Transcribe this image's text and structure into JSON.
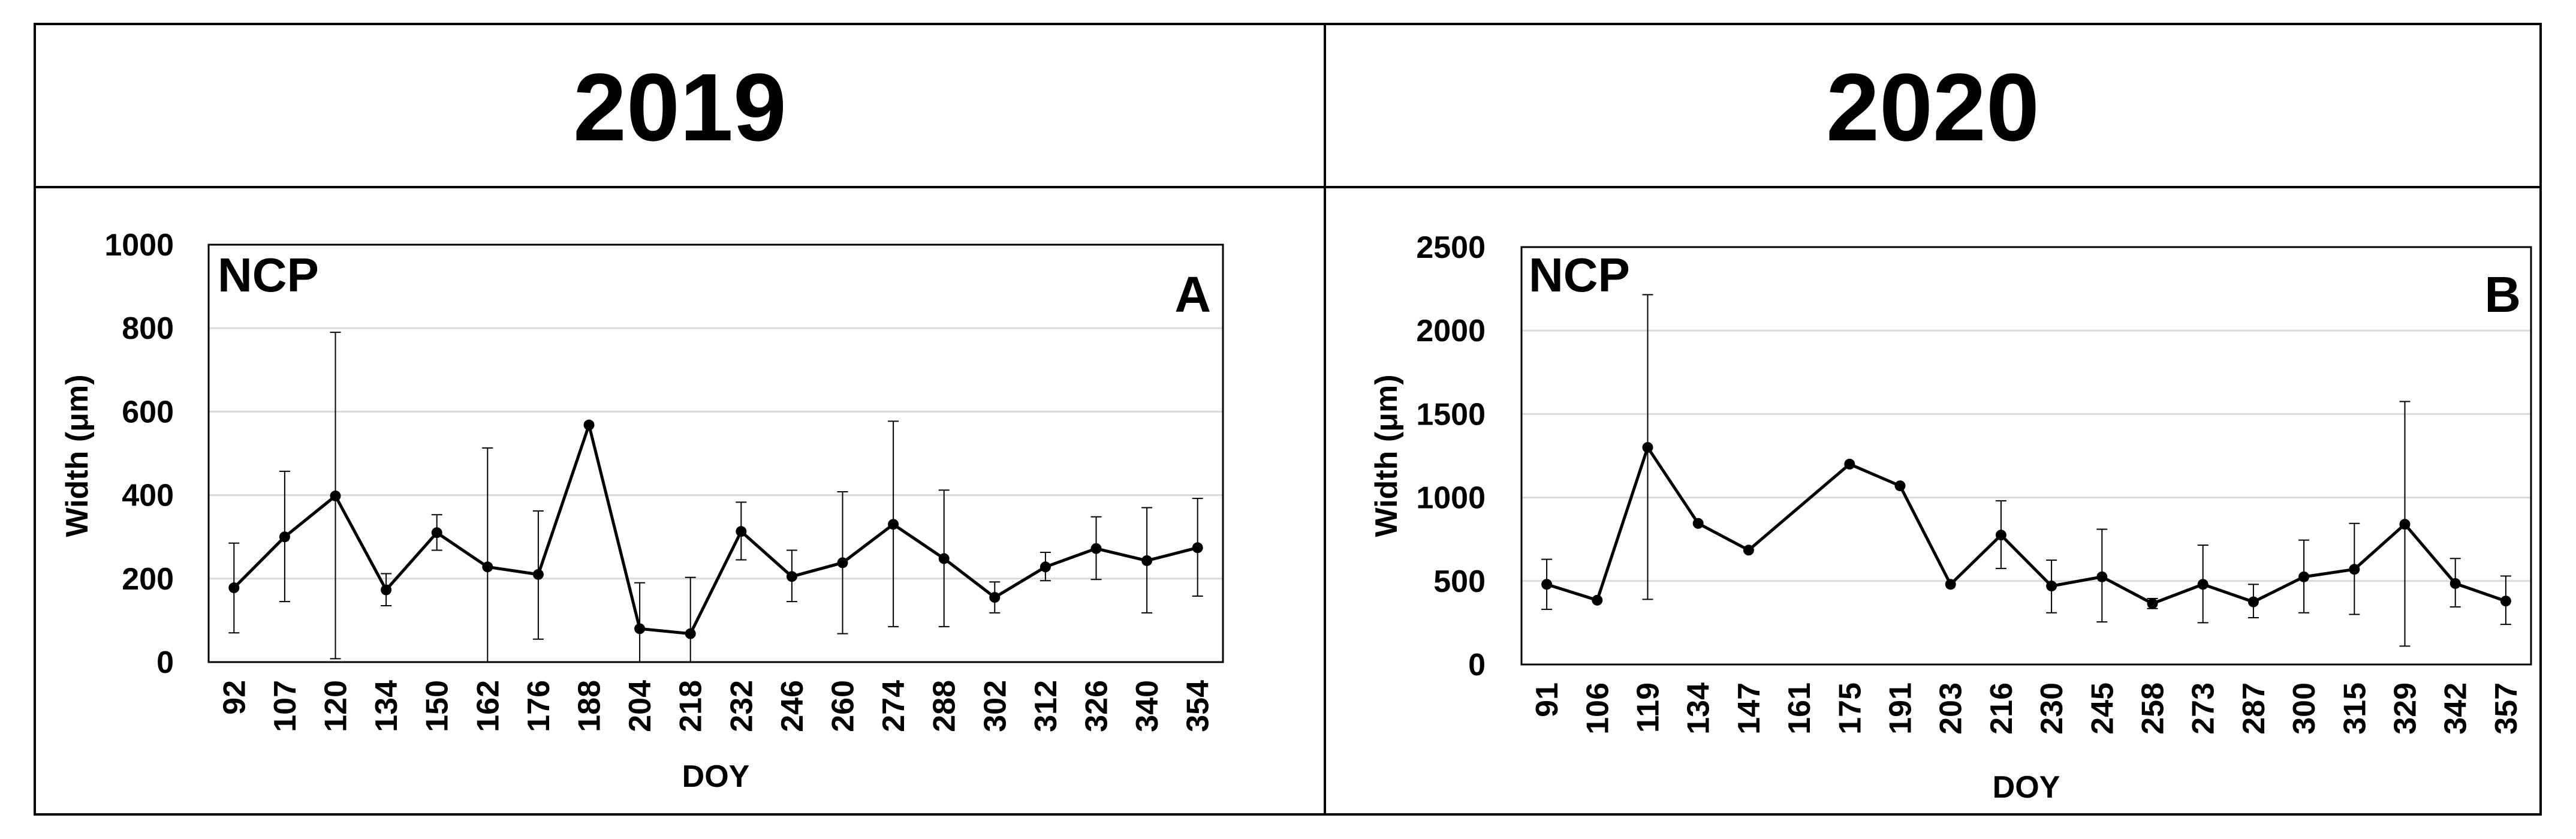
{
  "chart_data": [
    {
      "type": "line",
      "year": "2019",
      "site": "NCP",
      "panel": "A",
      "xlabel": "DOY",
      "ylabel": "Width (μm)",
      "ylim": [
        0,
        1000
      ],
      "yticks": [
        0,
        200,
        400,
        600,
        800,
        1000
      ],
      "grid": true,
      "categories": [
        "92",
        "107",
        "120",
        "134",
        "150",
        "162",
        "176",
        "188",
        "204",
        "218",
        "232",
        "246",
        "260",
        "274",
        "288",
        "302",
        "312",
        "326",
        "340",
        "354"
      ],
      "values": [
        178,
        300,
        398,
        173,
        310,
        228,
        210,
        568,
        80,
        68,
        313,
        205,
        238,
        330,
        248,
        155,
        228,
        272,
        243,
        274
      ],
      "error_low": [
        70,
        145,
        8,
        135,
        268,
        0,
        55,
        null,
        0,
        0,
        245,
        145,
        68,
        85,
        85,
        118,
        195,
        198,
        118,
        158
      ],
      "error_high": [
        285,
        457,
        790,
        212,
        353,
        513,
        362,
        null,
        190,
        203,
        383,
        268,
        408,
        577,
        412,
        192,
        263,
        348,
        370,
        392
      ]
    },
    {
      "type": "line",
      "year": "2020",
      "site": "NCP",
      "panel": "B",
      "xlabel": "DOY",
      "ylabel": "Width (μm)",
      "ylim": [
        0,
        2500
      ],
      "yticks": [
        0,
        500,
        1000,
        1500,
        2000,
        2500
      ],
      "grid": true,
      "categories": [
        "91",
        "106",
        "119",
        "134",
        "147",
        "161",
        "175",
        "191",
        "203",
        "216",
        "230",
        "245",
        "258",
        "273",
        "287",
        "300",
        "315",
        "329",
        "342",
        "357"
      ],
      "values": [
        480,
        385,
        1300,
        845,
        685,
        null,
        1200,
        1070,
        480,
        775,
        470,
        525,
        365,
        480,
        375,
        525,
        570,
        840,
        485,
        380
      ],
      "error_low": [
        330,
        null,
        390,
        null,
        null,
        null,
        null,
        null,
        null,
        575,
        310,
        255,
        335,
        250,
        280,
        310,
        300,
        110,
        345,
        240
      ],
      "error_high": [
        630,
        null,
        2215,
        null,
        null,
        null,
        null,
        null,
        null,
        980,
        625,
        810,
        395,
        715,
        480,
        745,
        845,
        1575,
        635,
        530
      ]
    }
  ]
}
